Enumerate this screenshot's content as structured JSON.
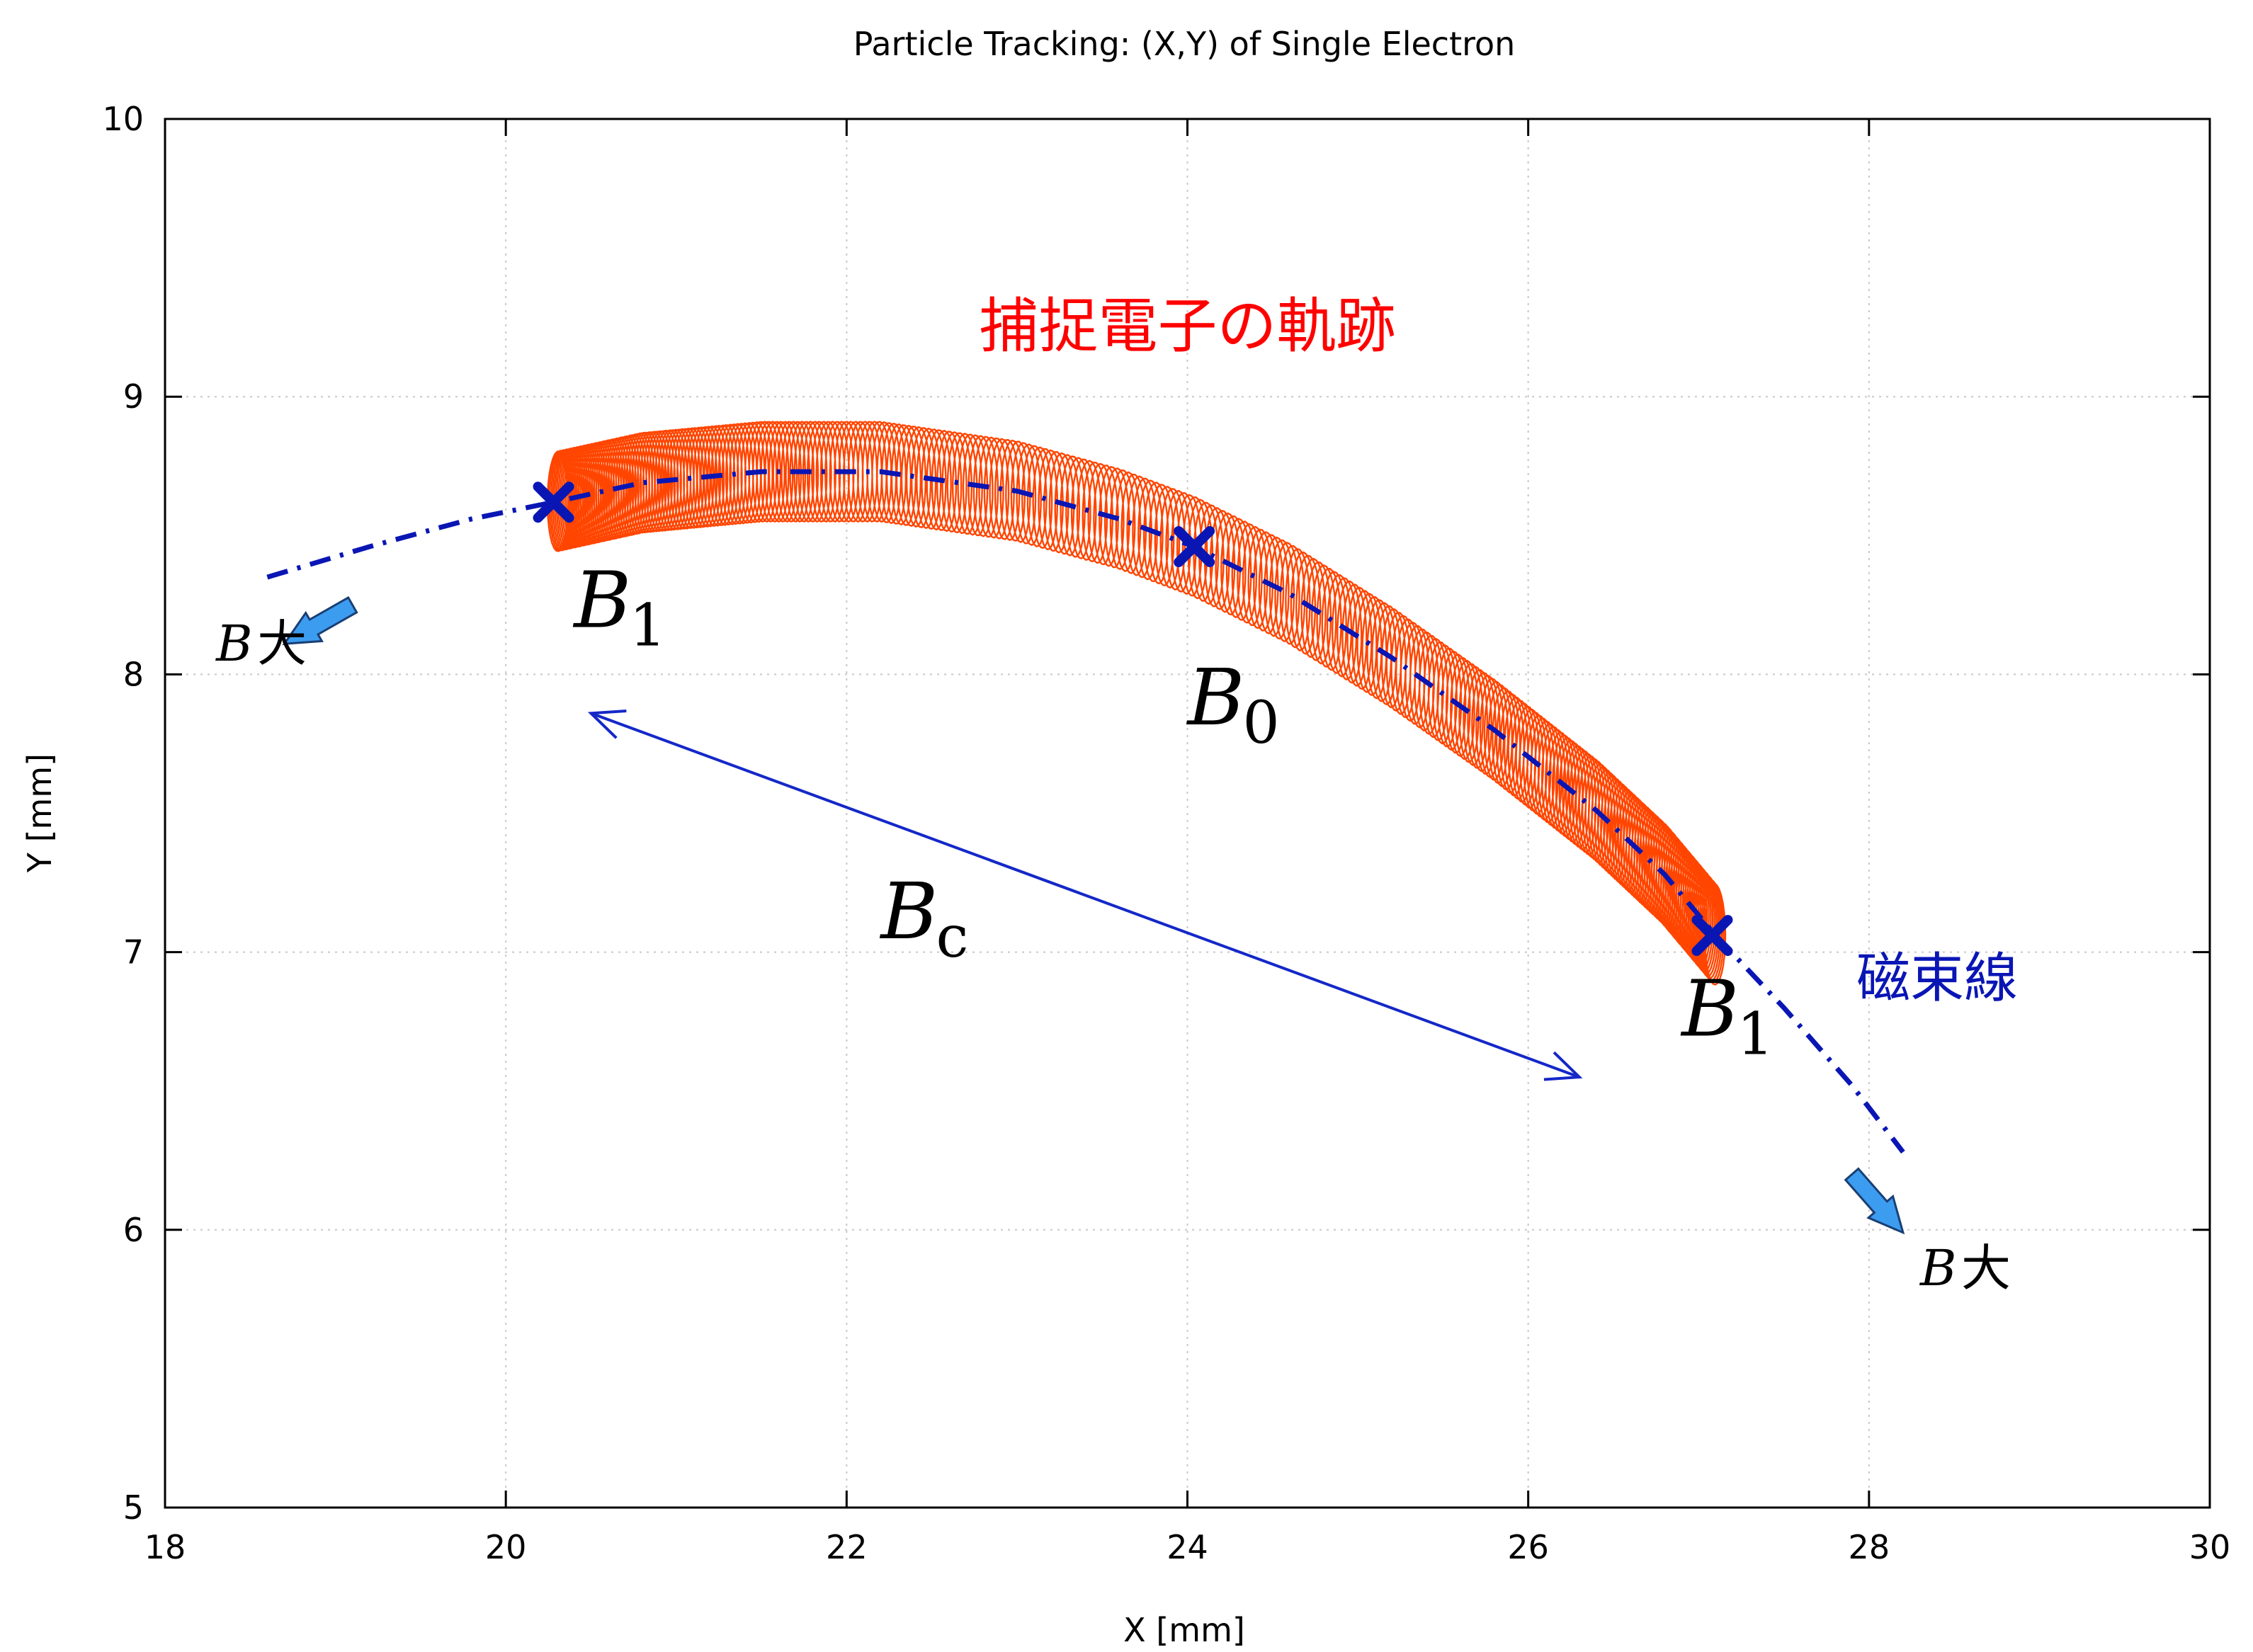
{
  "chart_data": {
    "type": "line",
    "title": "Particle Tracking: (X,Y) of Single Electron",
    "xlabel": "X [mm]",
    "ylabel": "Y [mm]",
    "xlim": [
      18,
      30
    ],
    "ylim": [
      5,
      10
    ],
    "x_ticks": [
      "18",
      "20",
      "22",
      "24",
      "26",
      "28",
      "30"
    ],
    "y_ticks": [
      "5",
      "6",
      "7",
      "8",
      "9",
      "10"
    ],
    "grid": true,
    "series": [
      {
        "name": "捕捉電子の軌跡",
        "color": "#ff4500",
        "style": "gyration loops along guiding field line",
        "x_range": [
          20.3,
          27.1
        ],
        "gyration_radius_mm": 0.18
      },
      {
        "name": "磁束線",
        "color": "#0a16b4",
        "style": "dash-dot",
        "x": [
          18.6,
          19.2,
          19.8,
          20.28,
          20.8,
          21.5,
          22.2,
          23.0,
          23.6,
          24.04,
          24.6,
          25.2,
          25.8,
          26.4,
          26.8,
          27.1,
          27.5,
          27.9,
          28.2
        ],
        "y": [
          8.35,
          8.46,
          8.56,
          8.62,
          8.69,
          8.73,
          8.73,
          8.66,
          8.56,
          8.46,
          8.29,
          8.06,
          7.8,
          7.51,
          7.28,
          7.06,
          6.8,
          6.52,
          6.28
        ]
      }
    ],
    "markers": [
      {
        "label_main": "B",
        "label_sub": "1",
        "x": 20.28,
        "y": 8.62,
        "color": "#0a16b4"
      },
      {
        "label_main": "B",
        "label_sub": "0",
        "x": 24.04,
        "y": 8.46,
        "color": "#0a16b4"
      },
      {
        "label_main": "B",
        "label_sub": "1",
        "x": 27.08,
        "y": 7.06,
        "color": "#0a16b4"
      }
    ],
    "annotations": {
      "trajectory_label": {
        "text": "捕捉電子の軌跡",
        "x": 24.0,
        "y": 9.18,
        "color": "#ff0000"
      },
      "field_line_label": {
        "text": "磁束線",
        "x": 28.4,
        "y": 6.84,
        "color": "#0a16b4"
      },
      "bc": {
        "main": "B",
        "sub": "c",
        "x": 22.2,
        "y": 7.05,
        "arrow_from": [
          20.5,
          7.86
        ],
        "arrow_to": [
          26.3,
          6.55
        ]
      },
      "b_large_left": {
        "main": "B",
        "suffix": "大",
        "x": 18.3,
        "y": 8.05,
        "arrow_from": [
          19.1,
          8.25
        ],
        "arrow_to": [
          18.7,
          8.11
        ]
      },
      "b_large_right": {
        "main": "B",
        "suffix": "大",
        "x": 28.3,
        "y": 5.8,
        "arrow_from": [
          27.9,
          6.2
        ],
        "arrow_to": [
          28.2,
          5.99
        ]
      }
    },
    "arrow_fill_color": "#3c9cf0"
  }
}
